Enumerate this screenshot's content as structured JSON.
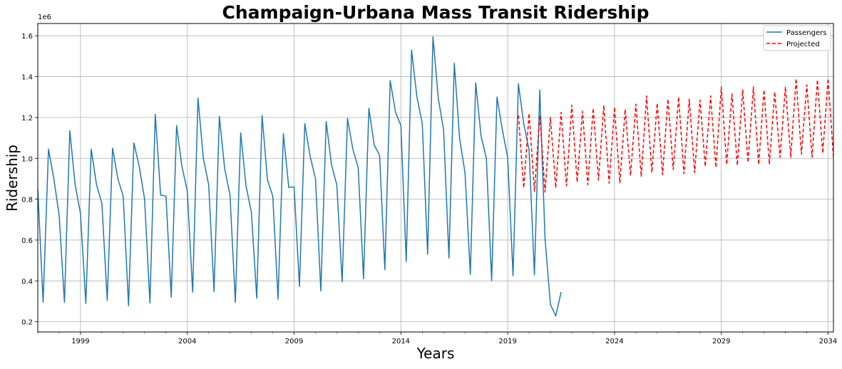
{
  "chart_data": {
    "type": "line",
    "title": "Champaign-Urbana Mass Transit Ridership",
    "xlabel": "Years",
    "ylabel": "Ridership",
    "y_offset_text": "1e6",
    "xlim": [
      1997.0,
      2034.25
    ],
    "ylim": [
      150000,
      1660000
    ],
    "grid": true,
    "legend_position": "top-right",
    "x_ticks": [
      1999,
      2004,
      2009,
      2014,
      2019,
      2024,
      2029,
      2034
    ],
    "x_tick_labels": [
      "1999",
      "2004",
      "2009",
      "2014",
      "2019",
      "2024",
      "2029",
      "2034"
    ],
    "y_ticks": [
      200000,
      400000,
      600000,
      800000,
      1000000,
      1200000,
      1400000,
      1600000
    ],
    "y_tick_labels": [
      "0.2",
      "0.4",
      "0.6",
      "0.8",
      "1.0",
      "1.2",
      "1.4",
      "1.6"
    ],
    "series": [
      {
        "name": "Passengers",
        "color": "#1f77b4",
        "style": "solid",
        "points": [
          [
            1997.0,
            850000
          ],
          [
            1997.25,
            295000
          ],
          [
            1997.5,
            1045000
          ],
          [
            1997.75,
            900000
          ],
          [
            1998.0,
            720000
          ],
          [
            1998.25,
            295000
          ],
          [
            1998.5,
            1135000
          ],
          [
            1998.75,
            870000
          ],
          [
            1999.0,
            730000
          ],
          [
            1999.25,
            290000
          ],
          [
            1999.5,
            1045000
          ],
          [
            1999.75,
            870000
          ],
          [
            2000.0,
            780000
          ],
          [
            2000.25,
            305000
          ],
          [
            2000.5,
            1050000
          ],
          [
            2000.75,
            900000
          ],
          [
            2001.0,
            815000
          ],
          [
            2001.25,
            278000
          ],
          [
            2001.5,
            1075000
          ],
          [
            2001.75,
            960000
          ],
          [
            2002.0,
            800000
          ],
          [
            2002.25,
            292000
          ],
          [
            2002.5,
            1215000
          ],
          [
            2002.75,
            820000
          ],
          [
            2003.0,
            815000
          ],
          [
            2003.25,
            320000
          ],
          [
            2003.5,
            1160000
          ],
          [
            2003.75,
            960000
          ],
          [
            2004.0,
            840000
          ],
          [
            2004.25,
            345000
          ],
          [
            2004.5,
            1295000
          ],
          [
            2004.75,
            1000000
          ],
          [
            2005.0,
            870000
          ],
          [
            2005.25,
            348000
          ],
          [
            2005.5,
            1205000
          ],
          [
            2005.75,
            950000
          ],
          [
            2006.0,
            820000
          ],
          [
            2006.25,
            295000
          ],
          [
            2006.5,
            1125000
          ],
          [
            2006.75,
            865000
          ],
          [
            2007.0,
            735000
          ],
          [
            2007.25,
            315000
          ],
          [
            2007.5,
            1210000
          ],
          [
            2007.75,
            895000
          ],
          [
            2008.0,
            815000
          ],
          [
            2008.25,
            310000
          ],
          [
            2008.5,
            1120000
          ],
          [
            2008.75,
            858000
          ],
          [
            2009.0,
            860000
          ],
          [
            2009.25,
            372000
          ],
          [
            2009.5,
            1170000
          ],
          [
            2009.75,
            1010000
          ],
          [
            2010.0,
            900000
          ],
          [
            2010.25,
            350000
          ],
          [
            2010.5,
            1180000
          ],
          [
            2010.75,
            970000
          ],
          [
            2011.0,
            870000
          ],
          [
            2011.25,
            395000
          ],
          [
            2011.5,
            1195000
          ],
          [
            2011.75,
            1045000
          ],
          [
            2012.0,
            955000
          ],
          [
            2012.25,
            410000
          ],
          [
            2012.5,
            1245000
          ],
          [
            2012.75,
            1065000
          ],
          [
            2013.0,
            1015000
          ],
          [
            2013.25,
            455000
          ],
          [
            2013.5,
            1380000
          ],
          [
            2013.75,
            1225000
          ],
          [
            2014.0,
            1160000
          ],
          [
            2014.25,
            495000
          ],
          [
            2014.5,
            1530000
          ],
          [
            2014.75,
            1300000
          ],
          [
            2015.0,
            1170000
          ],
          [
            2015.25,
            530000
          ],
          [
            2015.5,
            1595000
          ],
          [
            2015.75,
            1295000
          ],
          [
            2016.0,
            1140000
          ],
          [
            2016.25,
            512000
          ],
          [
            2016.5,
            1465000
          ],
          [
            2016.75,
            1095000
          ],
          [
            2017.0,
            930000
          ],
          [
            2017.25,
            432000
          ],
          [
            2017.5,
            1370000
          ],
          [
            2017.75,
            1110000
          ],
          [
            2018.0,
            1000000
          ],
          [
            2018.25,
            400000
          ],
          [
            2018.5,
            1300000
          ],
          [
            2018.75,
            1140000
          ],
          [
            2019.0,
            1005000
          ],
          [
            2019.25,
            425000
          ],
          [
            2019.5,
            1365000
          ],
          [
            2019.75,
            1170000
          ],
          [
            2020.0,
            1040000
          ],
          [
            2020.25,
            430000
          ],
          [
            2020.5,
            1335000
          ],
          [
            2020.75,
            605000
          ],
          [
            2021.0,
            285000
          ],
          [
            2021.25,
            228000
          ],
          [
            2021.5,
            345000
          ]
        ]
      },
      {
        "name": "Projected",
        "color": "#ff0000",
        "style": "dashed",
        "points": [
          [
            2019.5,
            1210000
          ],
          [
            2019.75,
            855000
          ],
          [
            2020.0,
            1220000
          ],
          [
            2020.25,
            838000
          ],
          [
            2020.5,
            1210000
          ],
          [
            2020.75,
            835000
          ],
          [
            2021.0,
            1200000
          ],
          [
            2021.25,
            855000
          ],
          [
            2021.5,
            1225000
          ],
          [
            2021.75,
            865000
          ],
          [
            2022.0,
            1260000
          ],
          [
            2022.25,
            883000
          ],
          [
            2022.5,
            1230000
          ],
          [
            2022.75,
            870000
          ],
          [
            2023.0,
            1245000
          ],
          [
            2023.25,
            893000
          ],
          [
            2023.5,
            1260000
          ],
          [
            2023.75,
            878000
          ],
          [
            2024.0,
            1250000
          ],
          [
            2024.25,
            880000
          ],
          [
            2024.5,
            1240000
          ],
          [
            2024.75,
            915000
          ],
          [
            2025.0,
            1265000
          ],
          [
            2025.25,
            910000
          ],
          [
            2025.5,
            1305000
          ],
          [
            2025.75,
            930000
          ],
          [
            2026.0,
            1270000
          ],
          [
            2026.25,
            920000
          ],
          [
            2026.5,
            1290000
          ],
          [
            2026.75,
            945000
          ],
          [
            2027.0,
            1300000
          ],
          [
            2027.25,
            925000
          ],
          [
            2027.5,
            1290000
          ],
          [
            2027.75,
            930000
          ],
          [
            2028.0,
            1285000
          ],
          [
            2028.25,
            960000
          ],
          [
            2028.5,
            1305000
          ],
          [
            2028.75,
            955000
          ],
          [
            2029.0,
            1350000
          ],
          [
            2029.25,
            970000
          ],
          [
            2029.5,
            1315000
          ],
          [
            2029.75,
            965000
          ],
          [
            2030.0,
            1335000
          ],
          [
            2030.25,
            980000
          ],
          [
            2030.5,
            1350000
          ],
          [
            2030.75,
            970000
          ],
          [
            2031.0,
            1335000
          ],
          [
            2031.25,
            970000
          ],
          [
            2031.5,
            1325000
          ],
          [
            2031.75,
            1005000
          ],
          [
            2032.0,
            1350000
          ],
          [
            2032.25,
            1005000
          ],
          [
            2032.5,
            1390000
          ],
          [
            2032.75,
            1020000
          ],
          [
            2033.0,
            1360000
          ],
          [
            2033.25,
            1005000
          ],
          [
            2033.5,
            1385000
          ],
          [
            2033.75,
            1025000
          ],
          [
            2034.0,
            1390000
          ],
          [
            2034.25,
            1005000
          ]
        ]
      }
    ]
  }
}
